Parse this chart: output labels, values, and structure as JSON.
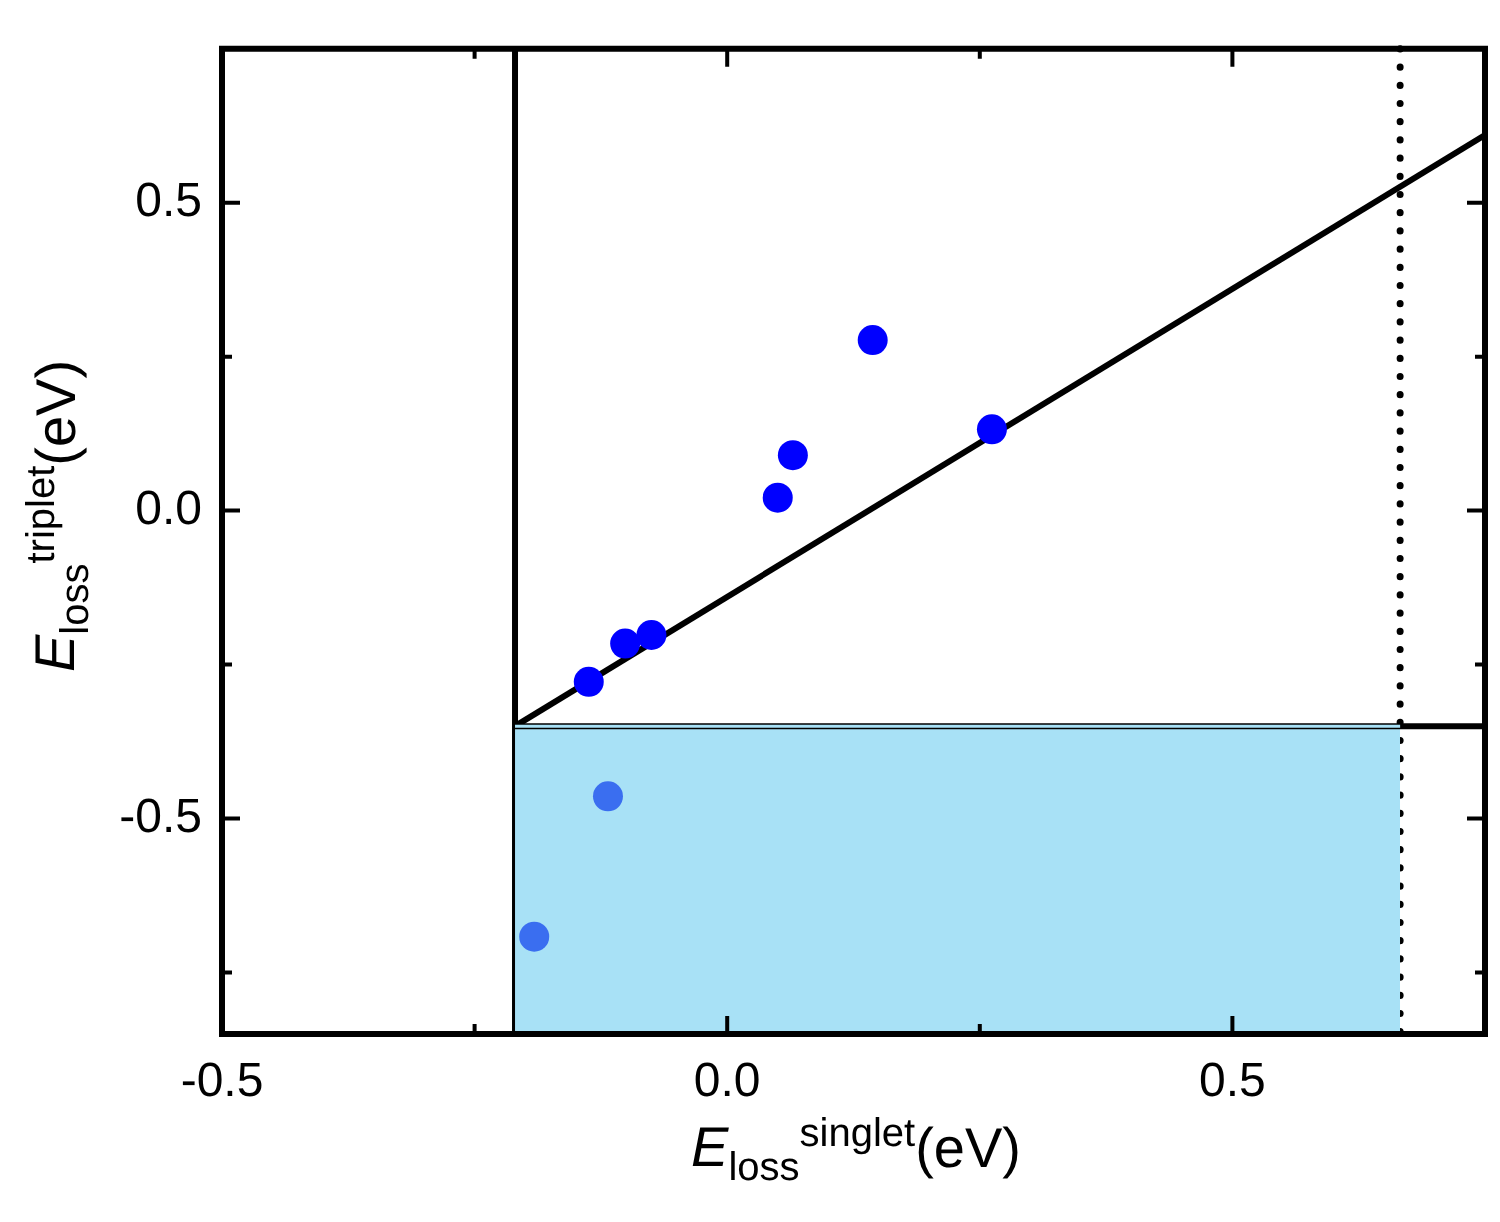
{
  "chart_data": {
    "type": "scatter",
    "xlabel": "E$_{loss}$$^{singlet}$(eV)",
    "ylabel": "E$_{loss}$$^{triplet}$(eV)",
    "xlim": [
      -0.5,
      0.75
    ],
    "ylim": [
      -0.85,
      0.75
    ],
    "xticks": [
      -0.5,
      {
        "value": -0.25,
        "label": null
      },
      {
        "value": 0,
        "label": "0.0"
      },
      {
        "value": 0.25,
        "label": null
      },
      0.5
    ],
    "yticks": [
      {
        "value": -0.75,
        "label": null
      },
      -0.5,
      {
        "value": -0.25,
        "label": null
      },
      {
        "value": 0,
        "label": "0.0"
      },
      {
        "value": 0.25,
        "label": null
      },
      0.5
    ],
    "grid": false,
    "legend": false,
    "marker": "circle",
    "series": [
      {
        "type": "line",
        "color": "#a8e1f6",
        "marker": "none",
        "x": [
          -0.21,
          0.666
        ],
        "values": [
          -0.35,
          -0.35
        ],
        "lower": [
          -0.85,
          -0.85
        ],
        "upper": [
          -0.35,
          -0.35
        ]
      },
      {
        "type": "line",
        "color": "#000000",
        "marker": "none",
        "x": [
          -0.21,
          0.75
        ],
        "values": [
          -0.35,
          -0.35
        ]
      },
      {
        "type": "line",
        "color": "#000000",
        "marker": "none",
        "x": [
          -0.21,
          0.75
        ],
        "values": [
          -0.35,
          0.61
        ]
      },
      {
        "type": "scatter",
        "x": [
          -0.137,
          -0.101,
          -0.075,
          0.05,
          0.065,
          0.144,
          0.262,
          -0.118,
          -0.191
        ],
        "values": [
          -0.278,
          -0.216,
          -0.202,
          0.021,
          0.09,
          0.277,
          0.132,
          -0.464,
          -0.692
        ],
        "colors": [
          "#0000ff",
          "#0000ff",
          "#0000ff",
          "#0000ff",
          "#0000ff",
          "#0000ff",
          "#0000ff",
          "#3a6ef0",
          "#3a6ef0"
        ]
      }
    ],
    "ref_lines": [
      {
        "axis": "x",
        "value": -0.21,
        "color": "#000000",
        "line_style": "solid"
      },
      {
        "axis": "x",
        "value": 0.666,
        "color": "#000000",
        "line_style": "dotted"
      }
    ]
  }
}
